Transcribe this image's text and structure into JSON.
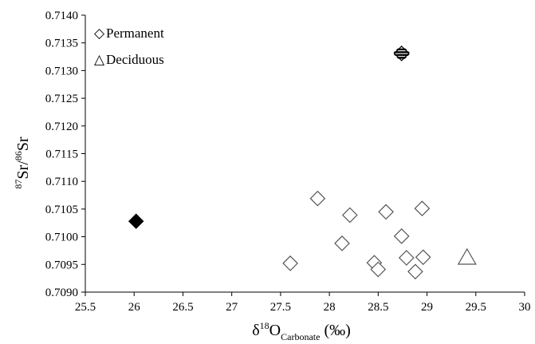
{
  "chart_data": {
    "type": "scatter",
    "xlim": [
      25.5,
      30
    ],
    "ylim": [
      0.709,
      0.714
    ],
    "xticks": [
      "25.5",
      "26",
      "26.5",
      "27",
      "27.5",
      "28",
      "28.5",
      "29",
      "29.5",
      "30"
    ],
    "yticks": [
      "0.7090",
      "0.7095",
      "0.7100",
      "0.7105",
      "0.7110",
      "0.7115",
      "0.7120",
      "0.7125",
      "0.7130",
      "0.7135",
      "0.7140"
    ],
    "xlabel": {
      "main": "δ",
      "sup": "18",
      "tail": "O",
      "sub": "Carbonate",
      "unit": " (‰)"
    },
    "ylabel": {
      "sup1": "87",
      "part1": "Sr/",
      "sup2": "86",
      "part2": "Sr"
    },
    "grid": false,
    "legend": {
      "placement": "top-left",
      "entries": [
        {
          "symbol": "◇",
          "label": "Permanent"
        },
        {
          "symbol": "△",
          "label": "Deciduous"
        }
      ]
    },
    "series": [
      {
        "name": "Permanent",
        "marker": "diamond-open",
        "points": [
          {
            "x": 27.6,
            "y": 0.70952
          },
          {
            "x": 27.88,
            "y": 0.71069
          },
          {
            "x": 28.13,
            "y": 0.70988
          },
          {
            "x": 28.21,
            "y": 0.71039
          },
          {
            "x": 28.46,
            "y": 0.70953
          },
          {
            "x": 28.5,
            "y": 0.70941
          },
          {
            "x": 28.58,
            "y": 0.71045
          },
          {
            "x": 28.74,
            "y": 0.71001
          },
          {
            "x": 28.79,
            "y": 0.70962
          },
          {
            "x": 28.88,
            "y": 0.70937
          },
          {
            "x": 28.95,
            "y": 0.71051
          },
          {
            "x": 28.96,
            "y": 0.70963
          }
        ]
      },
      {
        "marker": "diamond-filled",
        "points": [
          {
            "x": 26.02,
            "y": 0.71028
          }
        ]
      },
      {
        "marker": "diamond-striped",
        "points": [
          {
            "x": 28.74,
            "y": 0.71331
          }
        ]
      },
      {
        "name": "Deciduous",
        "marker": "triangle-open",
        "points": [
          {
            "x": 29.41,
            "y": 0.70962
          }
        ]
      }
    ]
  }
}
